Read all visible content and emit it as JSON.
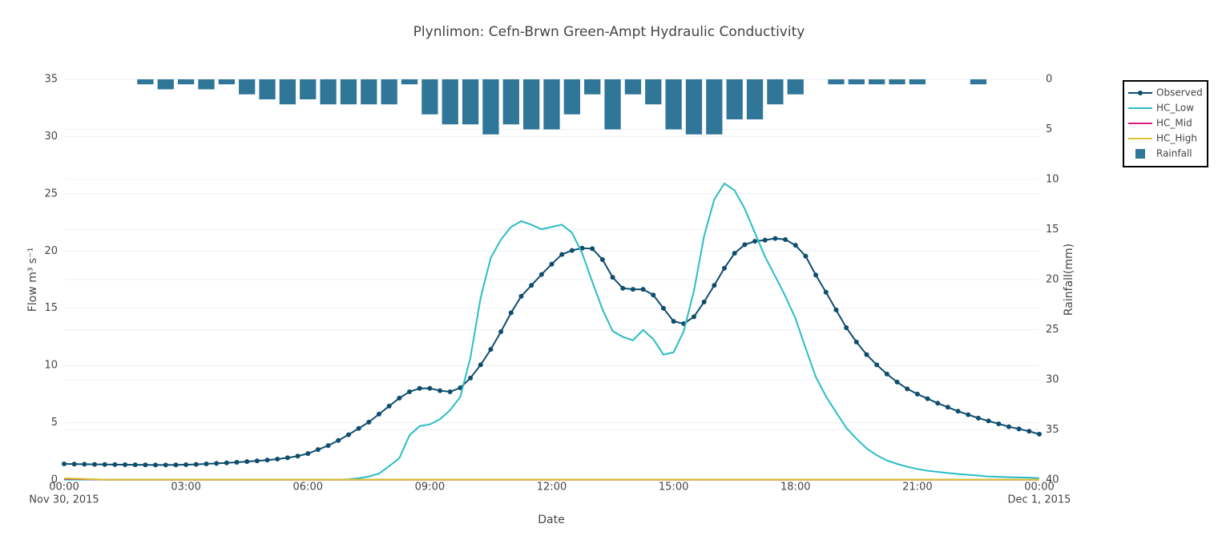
{
  "chart_data": {
    "type": "line",
    "title": "Plynlimon: Cefn-Brwn Green-Ampt Hydraulic Conductivity",
    "x_label": "Date",
    "y_label": "Flow m³ s⁻¹",
    "y2_label": "Rainfall(mm)",
    "xlim": [
      "2015-11-30T00:00",
      "2015-12-01T00:00"
    ],
    "xticks": [
      {
        "value": "2015-11-30T00:00",
        "label": [
          "00:00",
          "Nov 30, 2015"
        ]
      },
      {
        "value": "2015-11-30T03:00",
        "label": "03:00"
      },
      {
        "value": "2015-11-30T06:00",
        "label": "06:00"
      },
      {
        "value": "2015-11-30T09:00",
        "label": "09:00"
      },
      {
        "value": "2015-11-30T12:00",
        "label": "12:00"
      },
      {
        "value": "2015-11-30T15:00",
        "label": "15:00"
      },
      {
        "value": "2015-11-30T18:00",
        "label": "18:00"
      },
      {
        "value": "2015-11-30T21:00",
        "label": "21:00"
      },
      {
        "value": "2015-12-01T00:00",
        "label": [
          "00:00",
          "Dec 1, 2015"
        ]
      }
    ],
    "ylim": [
      0,
      35
    ],
    "yticks": [
      0,
      5,
      10,
      15,
      20,
      25,
      30,
      35
    ],
    "y2lim": [
      40,
      0
    ],
    "y2ticks": [
      0,
      5,
      10,
      15,
      20,
      25,
      30,
      35,
      40
    ],
    "grid": true,
    "legend": "upper right",
    "x": [
      "2015-11-30T00:00",
      "2015-11-30T00:15",
      "2015-11-30T00:30",
      "2015-11-30T00:45",
      "2015-11-30T01:00",
      "2015-11-30T01:15",
      "2015-11-30T01:30",
      "2015-11-30T01:45",
      "2015-11-30T02:00",
      "2015-11-30T02:15",
      "2015-11-30T02:30",
      "2015-11-30T02:45",
      "2015-11-30T03:00",
      "2015-11-30T03:15",
      "2015-11-30T03:30",
      "2015-11-30T03:45",
      "2015-11-30T04:00",
      "2015-11-30T04:15",
      "2015-11-30T04:30",
      "2015-11-30T04:45",
      "2015-11-30T05:00",
      "2015-11-30T05:15",
      "2015-11-30T05:30",
      "2015-11-30T05:45",
      "2015-11-30T06:00",
      "2015-11-30T06:15",
      "2015-11-30T06:30",
      "2015-11-30T06:45",
      "2015-11-30T07:00",
      "2015-11-30T07:15",
      "2015-11-30T07:30",
      "2015-11-30T07:45",
      "2015-11-30T08:00",
      "2015-11-30T08:15",
      "2015-11-30T08:30",
      "2015-11-30T08:45",
      "2015-11-30T09:00",
      "2015-11-30T09:15",
      "2015-11-30T09:30",
      "2015-11-30T09:45",
      "2015-11-30T10:00",
      "2015-11-30T10:15",
      "2015-11-30T10:30",
      "2015-11-30T10:45",
      "2015-11-30T11:00",
      "2015-11-30T11:15",
      "2015-11-30T11:30",
      "2015-11-30T11:45",
      "2015-11-30T12:00",
      "2015-11-30T12:15",
      "2015-11-30T12:30",
      "2015-11-30T12:45",
      "2015-11-30T13:00",
      "2015-11-30T13:15",
      "2015-11-30T13:30",
      "2015-11-30T13:45",
      "2015-11-30T14:00",
      "2015-11-30T14:15",
      "2015-11-30T14:30",
      "2015-11-30T14:45",
      "2015-11-30T15:00",
      "2015-11-30T15:15",
      "2015-11-30T15:30",
      "2015-11-30T15:45",
      "2015-11-30T16:00",
      "2015-11-30T16:15",
      "2015-11-30T16:30",
      "2015-11-30T16:45",
      "2015-11-30T17:00",
      "2015-11-30T17:15",
      "2015-11-30T17:30",
      "2015-11-30T17:45",
      "2015-11-30T18:00",
      "2015-11-30T18:15",
      "2015-11-30T18:30",
      "2015-11-30T18:45",
      "2015-11-30T19:00",
      "2015-11-30T19:15",
      "2015-11-30T19:30",
      "2015-11-30T19:45",
      "2015-11-30T20:00",
      "2015-11-30T20:15",
      "2015-11-30T20:30",
      "2015-11-30T20:45",
      "2015-11-30T21:00",
      "2015-11-30T21:15",
      "2015-11-30T21:30",
      "2015-11-30T21:45",
      "2015-11-30T22:00",
      "2015-11-30T22:15",
      "2015-11-30T22:30",
      "2015-11-30T22:45",
      "2015-11-30T23:00",
      "2015-11-30T23:15",
      "2015-11-30T23:30",
      "2015-11-30T23:45",
      "2015-12-01T00:00"
    ],
    "series": [
      {
        "name": "Observed",
        "type": "line",
        "markers": true,
        "color": "#0f4d6e",
        "values": [
          1.4,
          1.38,
          1.37,
          1.36,
          1.35,
          1.34,
          1.33,
          1.32,
          1.31,
          1.3,
          1.3,
          1.31,
          1.33,
          1.36,
          1.4,
          1.44,
          1.49,
          1.54,
          1.6,
          1.66,
          1.73,
          1.82,
          1.93,
          2.08,
          2.3,
          2.65,
          3.0,
          3.45,
          3.95,
          4.5,
          5.05,
          5.75,
          6.45,
          7.15,
          7.7,
          8.0,
          8.0,
          7.8,
          7.7,
          8.05,
          8.9,
          10.05,
          11.4,
          12.95,
          14.6,
          16.05,
          17.0,
          17.95,
          18.85,
          19.7,
          20.05,
          20.25,
          20.2,
          19.25,
          17.7,
          16.75,
          16.65,
          16.65,
          16.15,
          15.0,
          13.85,
          13.65,
          14.25,
          15.55,
          17.0,
          18.5,
          19.8,
          20.55,
          20.85,
          20.95,
          21.1,
          21.0,
          20.5,
          19.55,
          17.9,
          16.4,
          14.85,
          13.3,
          12.05,
          10.95,
          10.05,
          9.25,
          8.55,
          7.95,
          7.5,
          7.1,
          6.7,
          6.35,
          6.0,
          5.7,
          5.4,
          5.15,
          4.9,
          4.65,
          4.45,
          4.25,
          4.0
        ]
      },
      {
        "name": "HC_Low",
        "type": "line",
        "markers": false,
        "color": "#2abdc4",
        "values": [
          0.03,
          0.03,
          0.03,
          0.03,
          0.03,
          0.03,
          0.03,
          0.03,
          0.03,
          0.03,
          0.03,
          0.03,
          0.03,
          0.03,
          0.03,
          0.03,
          0.03,
          0.03,
          0.03,
          0.03,
          0.03,
          0.03,
          0.03,
          0.03,
          0.03,
          0.03,
          0.03,
          0.03,
          0.05,
          0.15,
          0.3,
          0.55,
          1.2,
          1.9,
          3.9,
          4.7,
          4.85,
          5.3,
          6.1,
          7.25,
          10.7,
          15.9,
          19.4,
          21.0,
          22.1,
          22.6,
          22.3,
          21.9,
          22.1,
          22.3,
          21.6,
          19.8,
          17.3,
          14.9,
          13.0,
          12.5,
          12.2,
          13.1,
          12.3,
          10.95,
          11.15,
          13.0,
          16.5,
          21.3,
          24.5,
          25.9,
          25.3,
          23.7,
          21.6,
          19.5,
          17.8,
          16.05,
          14.1,
          11.5,
          9.0,
          7.3,
          5.9,
          4.55,
          3.6,
          2.75,
          2.15,
          1.7,
          1.4,
          1.15,
          0.95,
          0.8,
          0.7,
          0.6,
          0.52,
          0.45,
          0.38,
          0.3,
          0.27,
          0.24,
          0.22,
          0.2,
          0.15
        ]
      },
      {
        "name": "HC_Mid",
        "type": "line",
        "markers": false,
        "color": "#d81b7f",
        "x": [
          "2015-11-30T00:00",
          "2015-11-30T01:00",
          "2015-11-30T02:00",
          "2015-11-30T03:00",
          "2015-11-30T04:00",
          "2015-11-30T05:00",
          "2015-11-30T06:00",
          "2015-11-30T07:00",
          "2015-11-30T08:00",
          "2015-11-30T09:00",
          "2015-11-30T10:00",
          "2015-11-30T11:00",
          "2015-11-30T12:00",
          "2015-11-30T13:00",
          "2015-11-30T14:00",
          "2015-11-30T15:00",
          "2015-11-30T16:00",
          "2015-11-30T17:00",
          "2015-11-30T18:00",
          "2015-11-30T19:00",
          "2015-11-30T20:00",
          "2015-11-30T21:00",
          "2015-11-30T22:00",
          "2015-11-30T23:00",
          "2015-12-01T00:00"
        ],
        "values": [
          0.1,
          0.02,
          0.02,
          0.02,
          0.02,
          0.02,
          0.02,
          0.02,
          0.02,
          0.02,
          0.02,
          0.02,
          0.02,
          0.02,
          0.02,
          0.02,
          0.02,
          0.02,
          0.02,
          0.02,
          0.02,
          0.02,
          0.02,
          0.02,
          0.02
        ]
      },
      {
        "name": "HC_High",
        "type": "line",
        "markers": false,
        "color": "#d6c530",
        "x": [
          "2015-11-30T00:00",
          "2015-11-30T01:00",
          "2015-11-30T02:00",
          "2015-11-30T03:00",
          "2015-11-30T04:00",
          "2015-11-30T05:00",
          "2015-11-30T06:00",
          "2015-11-30T07:00",
          "2015-11-30T08:00",
          "2015-11-30T09:00",
          "2015-11-30T10:00",
          "2015-11-30T11:00",
          "2015-11-30T12:00",
          "2015-11-30T13:00",
          "2015-11-30T14:00",
          "2015-11-30T15:00",
          "2015-11-30T16:00",
          "2015-11-30T17:00",
          "2015-11-30T18:00",
          "2015-11-30T19:00",
          "2015-11-30T20:00",
          "2015-11-30T21:00",
          "2015-11-30T22:00",
          "2015-11-30T23:00",
          "2015-12-01T00:00"
        ],
        "values": [
          0.15,
          0.03,
          0.03,
          0.03,
          0.03,
          0.03,
          0.03,
          0.03,
          0.03,
          0.03,
          0.03,
          0.03,
          0.03,
          0.03,
          0.03,
          0.03,
          0.03,
          0.03,
          0.03,
          0.03,
          0.03,
          0.03,
          0.03,
          0.03,
          0.03
        ]
      },
      {
        "name": "Rainfall",
        "type": "bar",
        "axis": "y2",
        "color": "#307699",
        "x": [
          "2015-11-30T02:00",
          "2015-11-30T02:30",
          "2015-11-30T03:00",
          "2015-11-30T03:30",
          "2015-11-30T04:00",
          "2015-11-30T04:30",
          "2015-11-30T05:00",
          "2015-11-30T05:30",
          "2015-11-30T06:00",
          "2015-11-30T06:30",
          "2015-11-30T07:00",
          "2015-11-30T07:30",
          "2015-11-30T08:00",
          "2015-11-30T08:30",
          "2015-11-30T09:00",
          "2015-11-30T09:30",
          "2015-11-30T10:00",
          "2015-11-30T10:30",
          "2015-11-30T11:00",
          "2015-11-30T11:30",
          "2015-11-30T12:00",
          "2015-11-30T12:30",
          "2015-11-30T13:00",
          "2015-11-30T13:30",
          "2015-11-30T14:00",
          "2015-11-30T14:30",
          "2015-11-30T15:00",
          "2015-11-30T15:30",
          "2015-11-30T16:00",
          "2015-11-30T16:30",
          "2015-11-30T17:00",
          "2015-11-30T17:30",
          "2015-11-30T18:00",
          "2015-11-30T18:30",
          "2015-11-30T19:00",
          "2015-11-30T19:30",
          "2015-11-30T20:00",
          "2015-11-30T20:30",
          "2015-11-30T21:00",
          "2015-11-30T21:30",
          "2015-11-30T22:00",
          "2015-11-30T22:30"
        ],
        "values": [
          0.5,
          1.0,
          0.5,
          1.0,
          0.5,
          1.5,
          2.0,
          2.5,
          2.0,
          2.5,
          2.5,
          2.5,
          2.5,
          0.5,
          3.5,
          4.5,
          4.5,
          5.5,
          4.5,
          5.0,
          5.0,
          3.5,
          1.5,
          5.0,
          1.5,
          2.5,
          5.0,
          5.5,
          5.5,
          4.0,
          4.0,
          2.5,
          1.5,
          0,
          0.5,
          0.5,
          0.5,
          0.5,
          0.5,
          0,
          0,
          0.5
        ]
      }
    ]
  }
}
